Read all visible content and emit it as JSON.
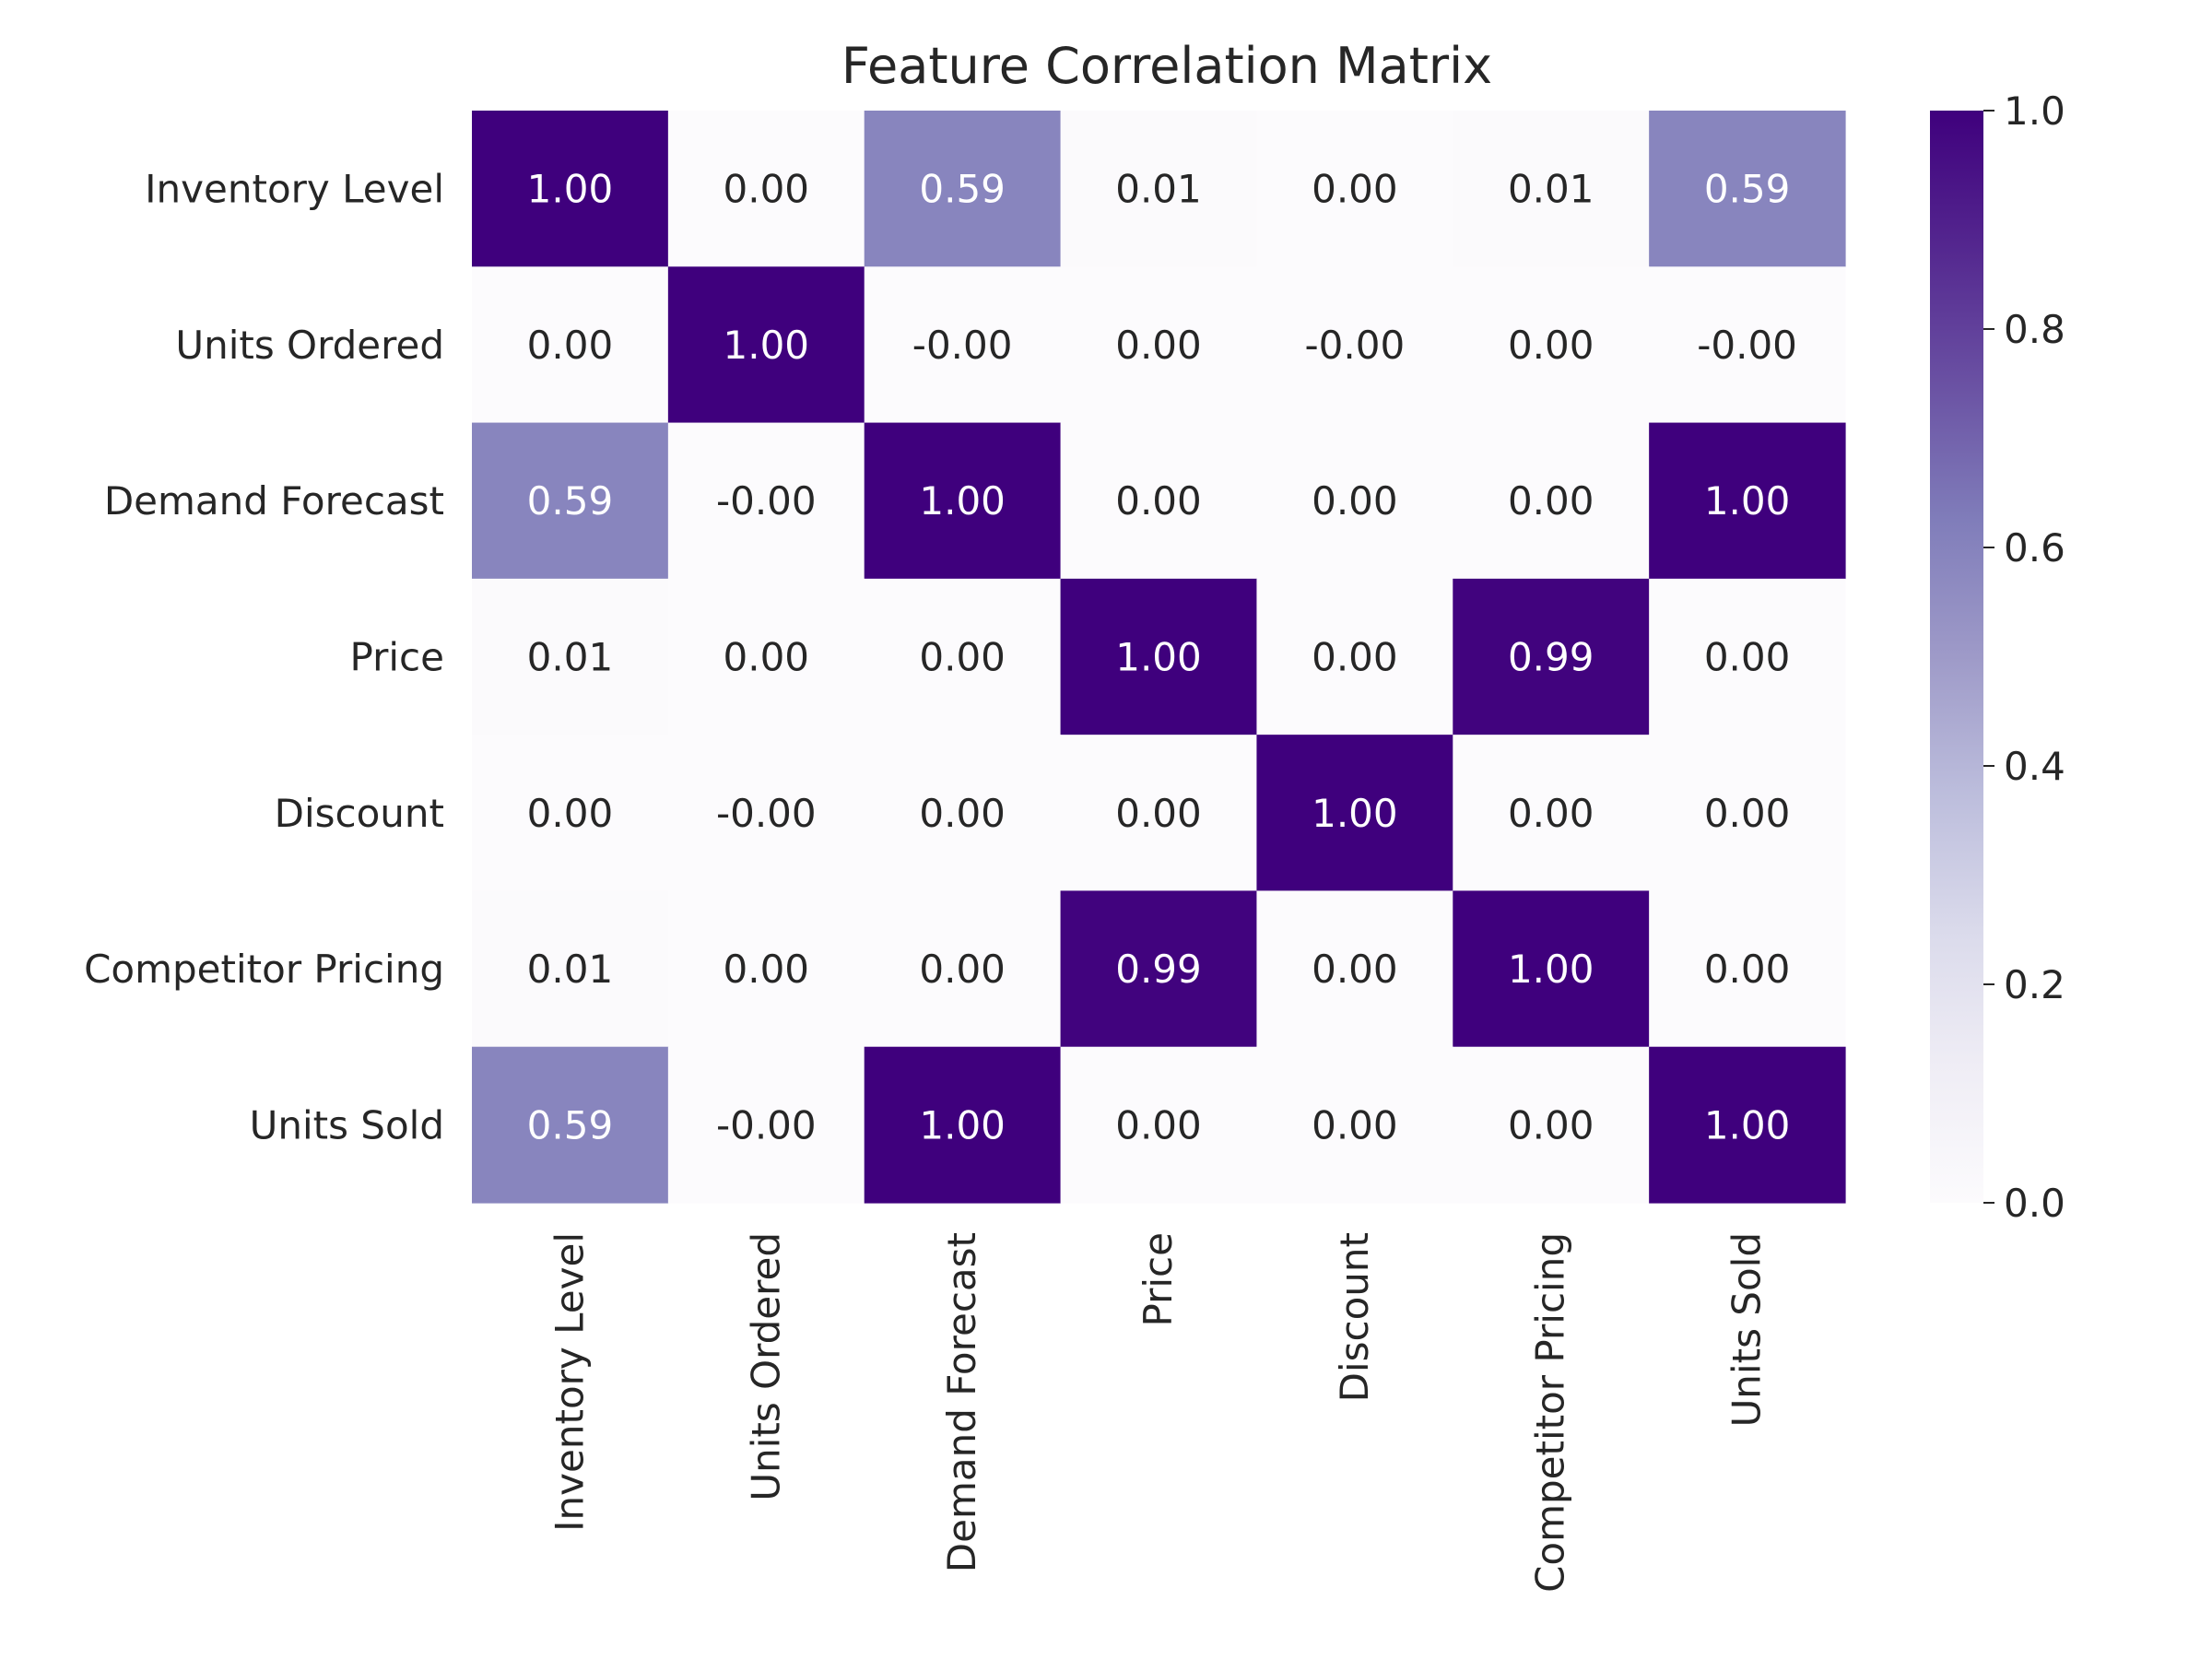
{
  "chart_data": {
    "type": "heatmap",
    "title": "Feature Correlation Matrix",
    "xlabel": "",
    "ylabel": "",
    "x_labels": [
      "Inventory Level",
      "Units Ordered",
      "Demand Forecast",
      "Price",
      "Discount",
      "Competitor Pricing",
      "Units Sold"
    ],
    "y_labels": [
      "Inventory Level",
      "Units Ordered",
      "Demand Forecast",
      "Price",
      "Discount",
      "Competitor Pricing",
      "Units Sold"
    ],
    "values": [
      [
        1.0,
        0.0,
        0.59,
        0.01,
        0.0,
        0.01,
        0.59
      ],
      [
        0.0,
        1.0,
        -0.0,
        0.0,
        -0.0,
        0.0,
        -0.0
      ],
      [
        0.59,
        -0.0,
        1.0,
        0.0,
        0.0,
        0.0,
        1.0
      ],
      [
        0.01,
        0.0,
        0.0,
        1.0,
        0.0,
        0.99,
        0.0
      ],
      [
        0.0,
        -0.0,
        0.0,
        0.0,
        1.0,
        0.0,
        0.0
      ],
      [
        0.01,
        0.0,
        0.0,
        0.99,
        0.0,
        1.0,
        0.0
      ],
      [
        0.59,
        -0.0,
        1.0,
        0.0,
        0.0,
        0.0,
        1.0
      ]
    ],
    "annotations": [
      [
        "1.00",
        "0.00",
        "0.59",
        "0.01",
        "0.00",
        "0.01",
        "0.59"
      ],
      [
        "0.00",
        "1.00",
        "-0.00",
        "0.00",
        "-0.00",
        "0.00",
        "-0.00"
      ],
      [
        "0.59",
        "-0.00",
        "1.00",
        "0.00",
        "0.00",
        "0.00",
        "1.00"
      ],
      [
        "0.01",
        "0.00",
        "0.00",
        "1.00",
        "0.00",
        "0.99",
        "0.00"
      ],
      [
        "0.00",
        "-0.00",
        "0.00",
        "0.00",
        "1.00",
        "0.00",
        "0.00"
      ],
      [
        "0.01",
        "0.00",
        "0.00",
        "0.99",
        "0.00",
        "1.00",
        "0.00"
      ],
      [
        "0.59",
        "-0.00",
        "1.00",
        "0.00",
        "0.00",
        "0.00",
        "1.00"
      ]
    ],
    "colorbar": {
      "range": [
        0.0,
        1.0
      ],
      "ticks": [
        "0.0",
        "0.2",
        "0.4",
        "0.6",
        "0.8",
        "1.0"
      ],
      "colormap": "Purples",
      "colors": [
        "#fcfbfd",
        "#efedf5",
        "#dadaeb",
        "#bcbddc",
        "#9e9ac8",
        "#807dba",
        "#6a51a3",
        "#54278f",
        "#3f007d"
      ]
    },
    "grid": false,
    "annotation_text_colors": {
      "light": "#ffffff",
      "dark": "#262626"
    }
  }
}
